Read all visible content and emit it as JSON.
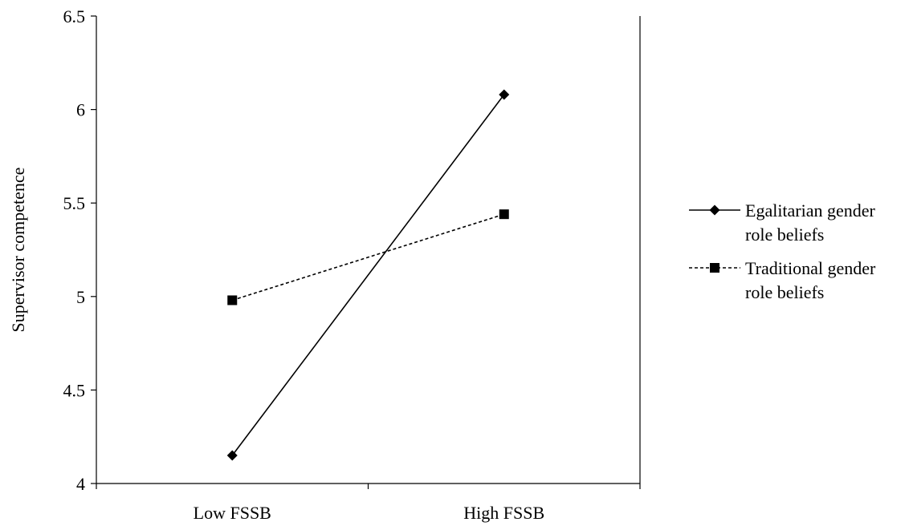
{
  "chart_data": {
    "type": "line",
    "categories": [
      "Low FSSB",
      "High FSSB"
    ],
    "ylabel": "Supervisor  competence",
    "ylim": [
      4,
      6.5
    ],
    "yticks": [
      "4",
      "4.5",
      "5",
      "5.5",
      "6",
      "6.5"
    ],
    "grid": false,
    "legend_position": "right",
    "series": [
      {
        "name_lines": [
          "Egalitarian gender",
          "role beliefs"
        ],
        "values": [
          4.15,
          6.08
        ],
        "line_style": "solid",
        "marker": "diamond",
        "color": "#000000"
      },
      {
        "name_lines": [
          "Traditional gender",
          "role beliefs"
        ],
        "values": [
          4.98,
          5.44
        ],
        "line_style": "dashed",
        "marker": "square",
        "color": "#000000"
      }
    ]
  }
}
